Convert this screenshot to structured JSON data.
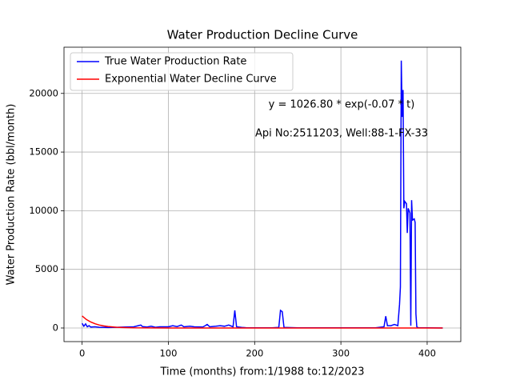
{
  "chart_data": {
    "type": "line",
    "title": "Water Production Decline Curve",
    "x_label": "Time (months) from:1/1988 to:12/2023",
    "y_label": "Water Production Rate (bbl/month)",
    "annotations": [
      "y = 1026.80 * exp(-0.07 * t)",
      "Api No:2511203, Well:88-1-FX-33"
    ],
    "xlim": [
      -21,
      439
    ],
    "ylim": [
      -1160,
      23940
    ],
    "xticks": [
      0,
      100,
      200,
      300,
      400
    ],
    "yticks": [
      0,
      5000,
      10000,
      15000,
      20000
    ],
    "grid": true,
    "legend": "upper left",
    "series": [
      {
        "name": "True Water Production Rate",
        "color": "#0000ff",
        "x": [
          0,
          2,
          4,
          6,
          8,
          10,
          15,
          20,
          30,
          40,
          50,
          60,
          65,
          68,
          70,
          75,
          80,
          85,
          90,
          100,
          105,
          110,
          115,
          118,
          125,
          130,
          140,
          145,
          148,
          155,
          160,
          165,
          170,
          175,
          177,
          179,
          185,
          190,
          200,
          210,
          220,
          228,
          230,
          232,
          234,
          250,
          300,
          340,
          350,
          352,
          354,
          358,
          362,
          366,
          368,
          369,
          370,
          371,
          372,
          373,
          374,
          376,
          377,
          378,
          380,
          381,
          382,
          383,
          385,
          386,
          387,
          388,
          390,
          400,
          418
        ],
        "values": [
          400,
          150,
          350,
          100,
          200,
          80,
          100,
          60,
          40,
          60,
          80,
          100,
          200,
          250,
          120,
          80,
          150,
          60,
          100,
          100,
          200,
          120,
          250,
          100,
          150,
          100,
          80,
          300,
          100,
          150,
          200,
          150,
          250,
          100,
          1500,
          100,
          50,
          30,
          20,
          10,
          10,
          50,
          1500,
          1400,
          50,
          10,
          10,
          20,
          100,
          1000,
          200,
          200,
          300,
          200,
          2000,
          3500,
          22800,
          18000,
          20300,
          10200,
          10800,
          10600,
          8100,
          10200,
          9800,
          200,
          10900,
          9200,
          9300,
          9000,
          1200,
          100,
          10,
          10,
          0
        ]
      },
      {
        "name": "Exponential Water Decline Curve",
        "color": "#ff0000",
        "x": [
          0,
          5,
          10,
          15,
          20,
          25,
          30,
          40,
          50,
          60,
          80,
          100,
          150,
          200,
          300,
          418
        ],
        "values": [
          1027,
          723,
          510,
          359,
          253,
          178,
          126,
          62,
          31,
          15,
          4,
          1,
          0,
          0,
          0,
          0
        ]
      }
    ]
  }
}
